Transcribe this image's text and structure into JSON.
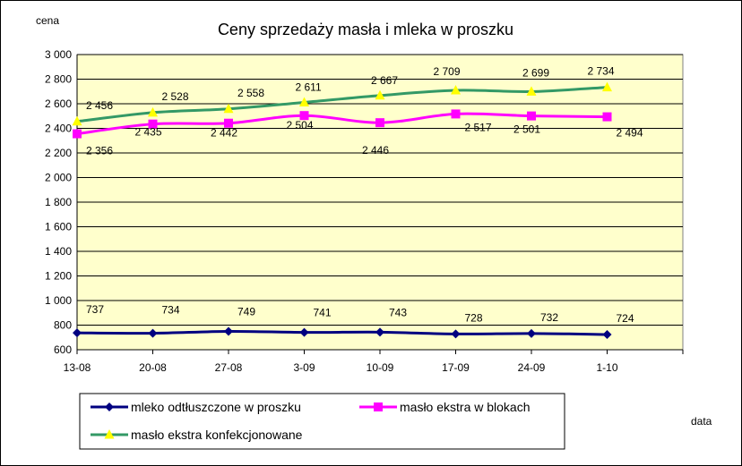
{
  "chart_data": {
    "type": "line",
    "title": "Ceny sprzedaży masła i mleka w proszku",
    "ylabel": "cena",
    "xlabel": "data",
    "ylim": [
      600,
      3000
    ],
    "ytick_step": 200,
    "ytick_labels": [
      "600",
      "800",
      "1 000",
      "1 200",
      "1 400",
      "1 600",
      "1 800",
      "2 000",
      "2 200",
      "2 400",
      "2 600",
      "2 800",
      "3 000"
    ],
    "categories": [
      "13-08",
      "20-08",
      "27-08",
      "3-09",
      "10-09",
      "17-09",
      "24-09",
      "1-10"
    ],
    "grid": true,
    "legend_position": "bottom",
    "series": [
      {
        "name": "mleko odtłuszczone w proszku",
        "color": "#000080",
        "marker": "diamond",
        "values": [
          737,
          734,
          749,
          741,
          743,
          728,
          732,
          724
        ],
        "labels": [
          "737",
          "734",
          "749",
          "741",
          "743",
          "728",
          "732",
          "724"
        ]
      },
      {
        "name": "masło ekstra w blokach",
        "color": "#FF00FF",
        "marker": "square",
        "values": [
          2356,
          2435,
          2442,
          2504,
          2446,
          2517,
          2501,
          2494
        ],
        "labels": [
          "2 356",
          "2 435",
          "2 442",
          "2 504",
          "2 446",
          "2 517",
          "2 501",
          "2 494"
        ]
      },
      {
        "name": "masło ekstra konfekcjonowane",
        "color": "#339966",
        "marker": "triangle",
        "marker_color": "#FFFF00",
        "values": [
          2456,
          2528,
          2558,
          2611,
          2667,
          2709,
          2699,
          2734
        ],
        "labels": [
          "2 456",
          "2 528",
          "2 558",
          "2 611",
          "2 667",
          "2 709",
          "2 699",
          "2 734"
        ]
      }
    ],
    "colors": {
      "plot_background": "#FFFFCC",
      "grid": "#000000"
    }
  }
}
